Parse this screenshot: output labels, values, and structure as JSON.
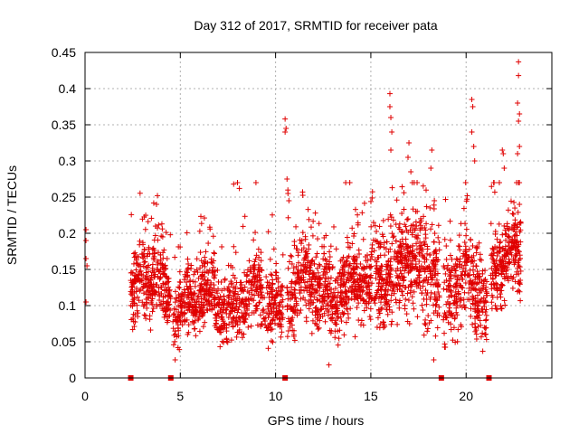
{
  "chart_data": {
    "type": "scatter",
    "title": "Day 312 of 2017, SRMTID for receiver pata",
    "xlabel": "GPS time / hours",
    "ylabel": "SRMTID / TECUs",
    "xlim": [
      0,
      24.5
    ],
    "ylim": [
      0,
      0.45
    ],
    "x_ticks": [
      0,
      5,
      10,
      15,
      20
    ],
    "x_tick_labels": [
      "0",
      "5",
      "10",
      "15",
      "20"
    ],
    "y_ticks": [
      0,
      0.05,
      0.1,
      0.15,
      0.2,
      0.25,
      0.3,
      0.35,
      0.4,
      0.45
    ],
    "y_tick_labels": [
      "0",
      "0.05",
      "0.1",
      "0.15",
      "0.2",
      "0.25",
      "0.3",
      "0.35",
      "0.4",
      "0.45"
    ],
    "grid": true,
    "marker": "plus",
    "color": "#e00000",
    "gap_markers_x": [
      2.4,
      4.5,
      10.5,
      18.7,
      21.2
    ],
    "isolated_points": [
      {
        "x": 0.05,
        "y": 0.205
      },
      {
        "x": 0.05,
        "y": 0.19
      },
      {
        "x": 0.05,
        "y": 0.165
      },
      {
        "x": 0.1,
        "y": 0.155
      },
      {
        "x": 0.05,
        "y": 0.105
      },
      {
        "x": 10.5,
        "y": 0.358
      },
      {
        "x": 10.55,
        "y": 0.345
      },
      {
        "x": 10.5,
        "y": 0.34
      },
      {
        "x": 10.6,
        "y": 0.275
      },
      {
        "x": 10.65,
        "y": 0.255
      },
      {
        "x": 10.7,
        "y": 0.245
      },
      {
        "x": 16.0,
        "y": 0.393
      },
      {
        "x": 16.0,
        "y": 0.375
      },
      {
        "x": 16.05,
        "y": 0.36
      },
      {
        "x": 16.1,
        "y": 0.34
      },
      {
        "x": 16.05,
        "y": 0.315
      },
      {
        "x": 17.0,
        "y": 0.325
      },
      {
        "x": 16.95,
        "y": 0.305
      },
      {
        "x": 17.1,
        "y": 0.285
      },
      {
        "x": 18.2,
        "y": 0.315
      },
      {
        "x": 18.15,
        "y": 0.29
      },
      {
        "x": 20.3,
        "y": 0.385
      },
      {
        "x": 20.35,
        "y": 0.375
      },
      {
        "x": 20.3,
        "y": 0.34
      },
      {
        "x": 20.4,
        "y": 0.32
      },
      {
        "x": 20.45,
        "y": 0.3
      },
      {
        "x": 21.9,
        "y": 0.315
      },
      {
        "x": 21.95,
        "y": 0.31
      },
      {
        "x": 22.0,
        "y": 0.29
      },
      {
        "x": 22.75,
        "y": 0.437
      },
      {
        "x": 22.75,
        "y": 0.418
      },
      {
        "x": 22.7,
        "y": 0.38
      },
      {
        "x": 22.8,
        "y": 0.365
      },
      {
        "x": 22.75,
        "y": 0.355
      },
      {
        "x": 22.8,
        "y": 0.32
      },
      {
        "x": 22.7,
        "y": 0.31
      },
      {
        "x": 22.75,
        "y": 0.27
      },
      {
        "x": 22.8,
        "y": 0.24
      },
      {
        "x": 12.8,
        "y": 0.018
      },
      {
        "x": 7.8,
        "y": 0.268
      },
      {
        "x": 8.1,
        "y": 0.262
      },
      {
        "x": 8.0,
        "y": 0.27
      },
      {
        "x": 3.8,
        "y": 0.252
      },
      {
        "x": 3.75,
        "y": 0.24
      }
    ],
    "series_summary": [
      {
        "x_from": 2.4,
        "x_to": 4.5,
        "y_center": 0.125,
        "y_spread": 0.045,
        "count": 320
      },
      {
        "x_from": 4.6,
        "x_to": 10.4,
        "y_center": 0.105,
        "y_spread": 0.04,
        "count": 780
      },
      {
        "x_from": 10.6,
        "x_to": 15.0,
        "y_center": 0.12,
        "y_spread": 0.045,
        "count": 640
      },
      {
        "x_from": 15.0,
        "x_to": 18.6,
        "y_center": 0.15,
        "y_spread": 0.06,
        "count": 560
      },
      {
        "x_from": 18.8,
        "x_to": 21.1,
        "y_center": 0.12,
        "y_spread": 0.05,
        "count": 330
      },
      {
        "x_from": 21.3,
        "x_to": 22.9,
        "y_center": 0.16,
        "y_spread": 0.045,
        "count": 260
      }
    ]
  }
}
